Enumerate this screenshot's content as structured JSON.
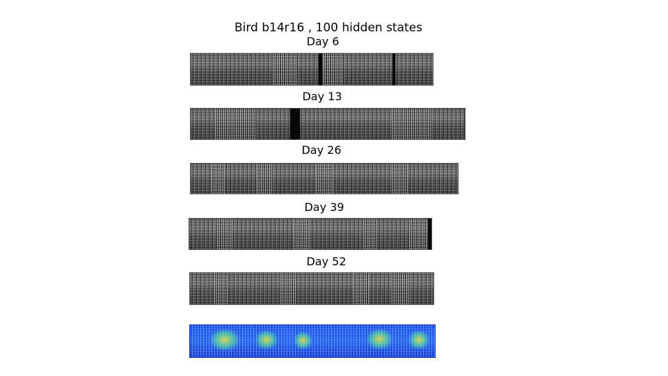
{
  "title": "Bird b14r16 , 100 hidden states",
  "panels": [
    {
      "label": "Day 6"
    },
    {
      "label": "Day 13"
    },
    {
      "label": "Day 26"
    },
    {
      "label": "Day 39"
    },
    {
      "label": "Day 52"
    }
  ]
}
